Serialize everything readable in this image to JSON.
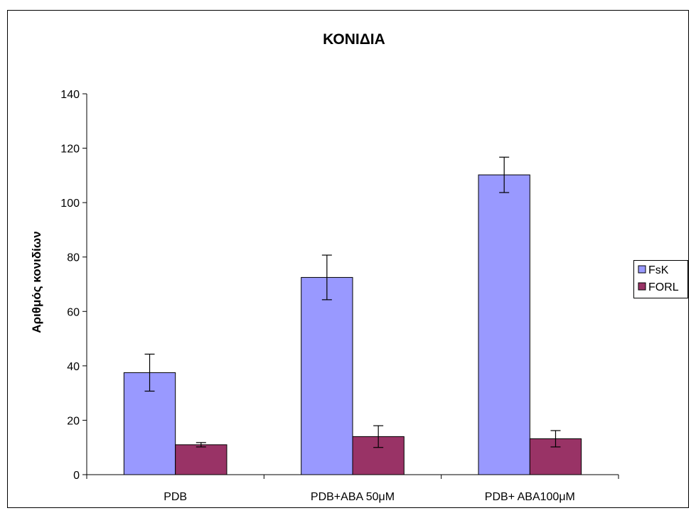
{
  "chart_data": {
    "type": "bar",
    "title": "ΚΟΝΙΔΙΑ",
    "xlabel": "",
    "ylabel": "Αριθμός κονιδίων",
    "categories": [
      "PDB",
      "PDB+ABA 50μM",
      "PDB+ ABA100μM"
    ],
    "series": [
      {
        "name": "FsK",
        "color": "#9999ff",
        "values": [
          37.5,
          72.5,
          110.2
        ],
        "errors": [
          6.8,
          8.2,
          6.5
        ]
      },
      {
        "name": "FORL",
        "color": "#993366",
        "values": [
          11,
          14,
          13.2
        ],
        "errors": [
          0.8,
          4.0,
          3.0
        ]
      }
    ],
    "ylim": [
      0,
      140
    ],
    "yticks": [
      0,
      20,
      40,
      60,
      80,
      100,
      120,
      140
    ],
    "grid": false,
    "legend_position": "right"
  }
}
